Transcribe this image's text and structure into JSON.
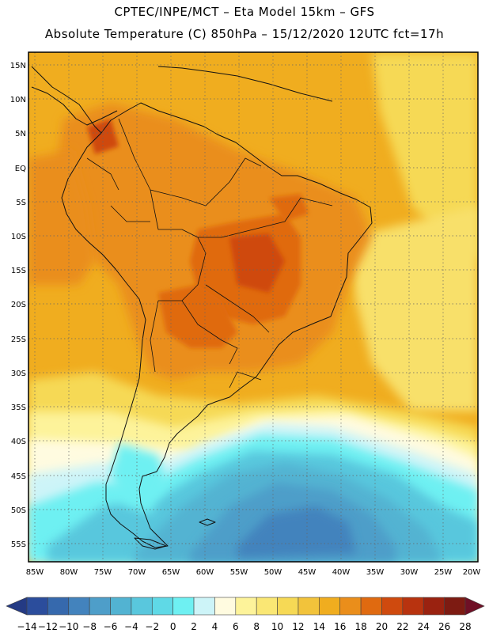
{
  "header": {
    "line1": "CPTEC/INPE/MCT –  Eta Model 15km – GFS",
    "line2": "Absolute Temperature (C) 850hPa – 15/12/2020 12UTC fct=17h"
  },
  "map": {
    "lon_labels": [
      "85W",
      "80W",
      "75W",
      "70W",
      "65W",
      "60W",
      "55W",
      "50W",
      "45W",
      "40W",
      "35W",
      "30W",
      "25W",
      "20W"
    ],
    "lat_labels": [
      "15N",
      "10N",
      "5N",
      "EQ",
      "5S",
      "10S",
      "15S",
      "20S",
      "25S",
      "30S",
      "35S",
      "40S",
      "45S",
      "50S",
      "55S"
    ]
  },
  "colorbar": {
    "labels": [
      "-14",
      "-12",
      "-10",
      "-8",
      "-6",
      "-4",
      "-2",
      "0",
      "2",
      "4",
      "6",
      "8",
      "10",
      "12",
      "14",
      "16",
      "18",
      "20",
      "22",
      "24",
      "26",
      "28"
    ],
    "colors": [
      "#2b4d9c",
      "#3669ad",
      "#4383bd",
      "#4e9ec9",
      "#52b3d2",
      "#59c7dd",
      "#5fd9e6",
      "#6ef0f2",
      "#cdf4f8",
      "#fffbe0",
      "#fdf39a",
      "#fae774",
      "#f6d955",
      "#f2c33b",
      "#f0ad1f",
      "#ea8e1b",
      "#e06a10",
      "#cf4a0e",
      "#b8330f",
      "#9a2210",
      "#7d1b12"
    ],
    "low_color": "#243a84",
    "high_color": "#6f1026"
  }
}
